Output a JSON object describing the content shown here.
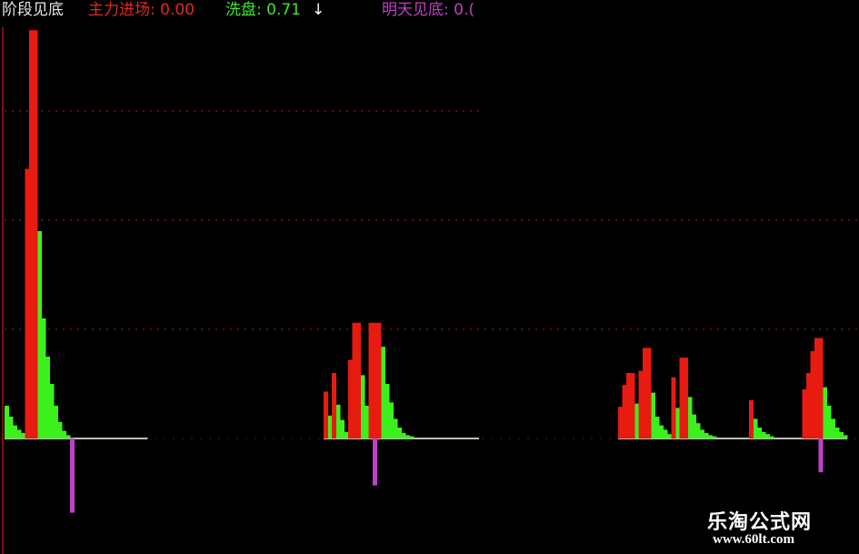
{
  "legend": {
    "title": "阶段见底",
    "main_force": "主力进场: 0.00",
    "washout": "洗盘: 0.71",
    "washout_arrow": "↓",
    "bottom_tomorrow": "明天见底: 0.("
  },
  "watermark": {
    "name": "乐淘公式网",
    "url": "www.60lt.com"
  },
  "chart_data": {
    "type": "bar",
    "grid": true,
    "gridlines": [
      1,
      2,
      3
    ],
    "ylim": [
      -1,
      3.8
    ],
    "colors": {
      "main_force": "#e81b10",
      "washout": "#3cf01e",
      "bottom_tomorrow": "#c040c8",
      "flat": "#b8c0b0",
      "grid": "#7a1010"
    },
    "series": [
      {
        "key": "washout",
        "name": "洗盘",
        "points": [
          [
            0,
            0.3
          ],
          [
            1,
            0.2
          ],
          [
            2,
            0.12
          ],
          [
            3,
            0.08
          ],
          [
            4,
            0.05
          ],
          [
            8,
            1.9
          ],
          [
            9,
            1.1
          ],
          [
            10,
            0.75
          ],
          [
            11,
            0.5
          ],
          [
            12,
            0.3
          ],
          [
            13,
            0.15
          ],
          [
            14,
            0.07
          ],
          [
            15,
            0.03
          ],
          [
            79,
            0.21
          ],
          [
            81,
            0.31
          ],
          [
            82,
            0.17
          ],
          [
            83,
            0.06
          ],
          [
            87,
            0.58
          ],
          [
            88,
            0.3
          ],
          [
            92,
            0.84
          ],
          [
            93,
            0.5
          ],
          [
            94,
            0.33
          ],
          [
            95,
            0.18
          ],
          [
            96,
            0.1
          ],
          [
            97,
            0.05
          ],
          [
            98,
            0.03
          ],
          [
            99,
            0.02
          ],
          [
            154,
            0.32
          ],
          [
            158,
            0.42
          ],
          [
            159,
            0.2
          ],
          [
            160,
            0.12
          ],
          [
            161,
            0.08
          ],
          [
            162,
            0.04
          ],
          [
            164,
            0.28
          ],
          [
            167,
            0.38
          ],
          [
            168,
            0.22
          ],
          [
            169,
            0.14
          ],
          [
            170,
            0.08
          ],
          [
            171,
            0.05
          ],
          [
            172,
            0.03
          ],
          [
            173,
            0.02
          ],
          [
            183,
            0.18
          ],
          [
            184,
            0.1
          ],
          [
            185,
            0.06
          ],
          [
            186,
            0.04
          ],
          [
            187,
            0.02
          ],
          [
            200,
            0.47
          ],
          [
            201,
            0.3
          ],
          [
            202,
            0.18
          ],
          [
            203,
            0.1
          ],
          [
            204,
            0.06
          ],
          [
            205,
            0.03
          ]
        ]
      },
      {
        "key": "main_force",
        "name": "主力进场",
        "points": [
          [
            5,
            2.47
          ],
          [
            6,
            3.74
          ],
          [
            7,
            3.74
          ],
          [
            78,
            0.43
          ],
          [
            80,
            0.6
          ],
          [
            84,
            0.72
          ],
          [
            85,
            1.06
          ],
          [
            86,
            1.06
          ],
          [
            89,
            1.06
          ],
          [
            90,
            1.06
          ],
          [
            91,
            1.06
          ],
          [
            150,
            0.29
          ],
          [
            151,
            0.49
          ],
          [
            152,
            0.6
          ],
          [
            153,
            0.6
          ],
          [
            155,
            0.62
          ],
          [
            156,
            0.83
          ],
          [
            157,
            0.83
          ],
          [
            163,
            0.56
          ],
          [
            165,
            0.74
          ],
          [
            166,
            0.74
          ],
          [
            182,
            0.35
          ],
          [
            195,
            0.45
          ],
          [
            196,
            0.6
          ],
          [
            197,
            0.8
          ],
          [
            198,
            0.92
          ],
          [
            199,
            0.92
          ]
        ]
      },
      {
        "key": "bottom_tomorrow",
        "name": "明天见底",
        "points": [
          [
            16,
            -0.68
          ],
          [
            90,
            -0.43
          ],
          [
            199,
            -0.31
          ]
        ]
      }
    ],
    "flat_segments": [
      [
        0,
        35
      ],
      [
        78,
        116
      ],
      [
        150,
        206
      ]
    ]
  }
}
